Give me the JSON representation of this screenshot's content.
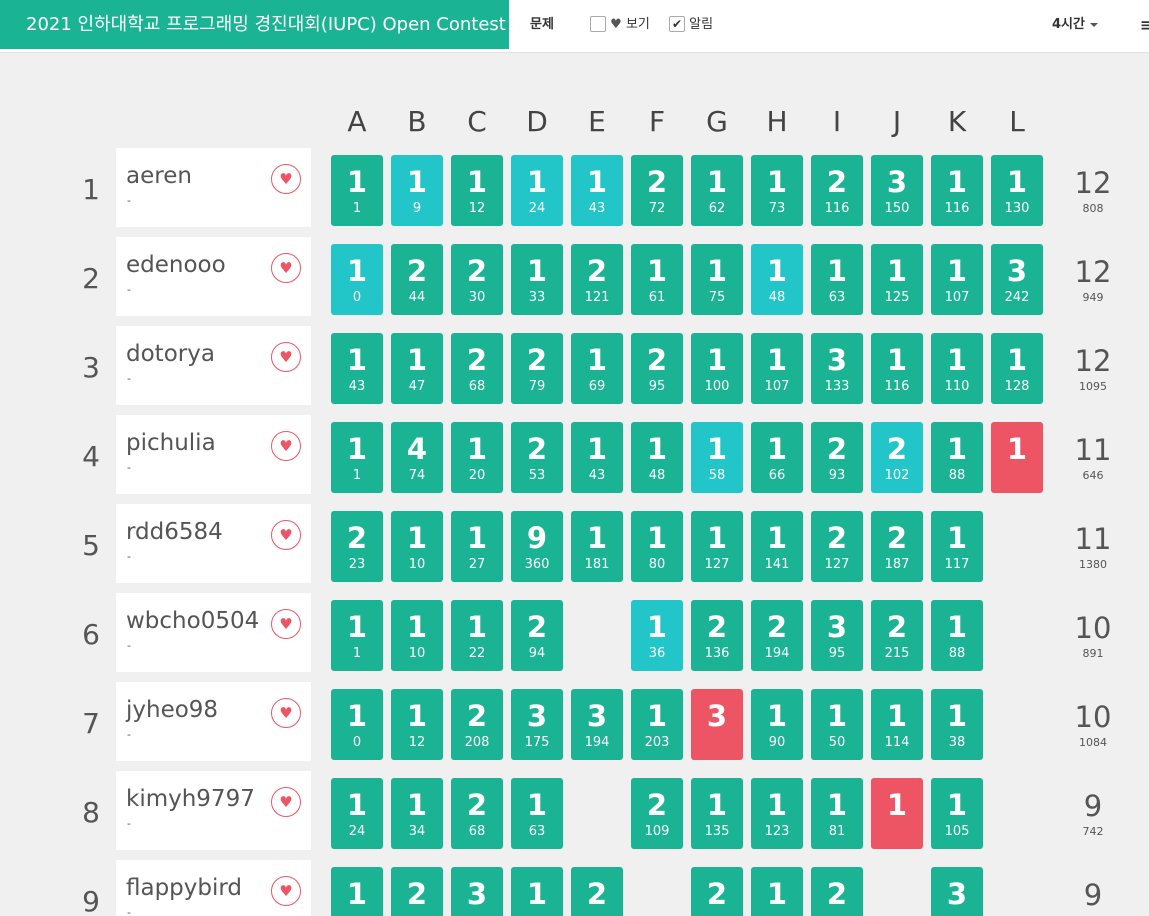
{
  "contest_title": "2021 인하대학교 프로그래밍 경진대회(IUPC) Open Contest",
  "toolbar": {
    "problem_label": "문제",
    "view_label": "보기",
    "view_checked": false,
    "alarm_label": "알림",
    "alarm_checked": true,
    "time_label": "4시간",
    "menu_glyph": "≡"
  },
  "colors": {
    "solved": "#1ab394",
    "first_solve": "#23c6c8",
    "failed": "#ed5565"
  },
  "problems": [
    "A",
    "B",
    "C",
    "D",
    "E",
    "F",
    "G",
    "H",
    "I",
    "J",
    "K",
    "L"
  ],
  "rows": [
    {
      "rank": "1",
      "name": "aeren",
      "sub": "-",
      "total": "12",
      "penalty": "808",
      "cells": [
        [
          "s",
          "1",
          "1"
        ],
        [
          "f",
          "1",
          "9"
        ],
        [
          "s",
          "1",
          "12"
        ],
        [
          "f",
          "1",
          "24"
        ],
        [
          "f",
          "1",
          "43"
        ],
        [
          "s",
          "2",
          "72"
        ],
        [
          "s",
          "1",
          "62"
        ],
        [
          "s",
          "1",
          "73"
        ],
        [
          "s",
          "2",
          "116"
        ],
        [
          "s",
          "3",
          "150"
        ],
        [
          "s",
          "1",
          "116"
        ],
        [
          "s",
          "1",
          "130"
        ]
      ]
    },
    {
      "rank": "2",
      "name": "edenooo",
      "sub": "-",
      "total": "12",
      "penalty": "949",
      "cells": [
        [
          "f",
          "1",
          "0"
        ],
        [
          "s",
          "2",
          "44"
        ],
        [
          "s",
          "2",
          "30"
        ],
        [
          "s",
          "1",
          "33"
        ],
        [
          "s",
          "2",
          "121"
        ],
        [
          "s",
          "1",
          "61"
        ],
        [
          "s",
          "1",
          "75"
        ],
        [
          "f",
          "1",
          "48"
        ],
        [
          "s",
          "1",
          "63"
        ],
        [
          "s",
          "1",
          "125"
        ],
        [
          "s",
          "1",
          "107"
        ],
        [
          "s",
          "3",
          "242"
        ]
      ]
    },
    {
      "rank": "3",
      "name": "dotorya",
      "sub": "-",
      "total": "12",
      "penalty": "1095",
      "cells": [
        [
          "s",
          "1",
          "43"
        ],
        [
          "s",
          "1",
          "47"
        ],
        [
          "s",
          "2",
          "68"
        ],
        [
          "s",
          "2",
          "79"
        ],
        [
          "s",
          "1",
          "69"
        ],
        [
          "s",
          "2",
          "95"
        ],
        [
          "s",
          "1",
          "100"
        ],
        [
          "s",
          "1",
          "107"
        ],
        [
          "s",
          "3",
          "133"
        ],
        [
          "s",
          "1",
          "116"
        ],
        [
          "s",
          "1",
          "110"
        ],
        [
          "s",
          "1",
          "128"
        ]
      ]
    },
    {
      "rank": "4",
      "name": "pichulia",
      "sub": "-",
      "total": "11",
      "penalty": "646",
      "cells": [
        [
          "s",
          "1",
          "1"
        ],
        [
          "s",
          "4",
          "74"
        ],
        [
          "s",
          "1",
          "20"
        ],
        [
          "s",
          "2",
          "53"
        ],
        [
          "s",
          "1",
          "43"
        ],
        [
          "s",
          "1",
          "48"
        ],
        [
          "f",
          "1",
          "58"
        ],
        [
          "s",
          "1",
          "66"
        ],
        [
          "s",
          "2",
          "93"
        ],
        [
          "f",
          "2",
          "102"
        ],
        [
          "s",
          "1",
          "88"
        ],
        [
          "x",
          "1",
          ""
        ]
      ]
    },
    {
      "rank": "5",
      "name": "rdd6584",
      "sub": "-",
      "total": "11",
      "penalty": "1380",
      "cells": [
        [
          "s",
          "2",
          "23"
        ],
        [
          "s",
          "1",
          "10"
        ],
        [
          "s",
          "1",
          "27"
        ],
        [
          "s",
          "9",
          "360"
        ],
        [
          "s",
          "1",
          "181"
        ],
        [
          "s",
          "1",
          "80"
        ],
        [
          "s",
          "1",
          "127"
        ],
        [
          "s",
          "1",
          "141"
        ],
        [
          "s",
          "2",
          "127"
        ],
        [
          "s",
          "2",
          "187"
        ],
        [
          "s",
          "1",
          "117"
        ],
        null
      ]
    },
    {
      "rank": "6",
      "name": "wbcho0504",
      "sub": "-",
      "total": "10",
      "penalty": "891",
      "cells": [
        [
          "s",
          "1",
          "1"
        ],
        [
          "s",
          "1",
          "10"
        ],
        [
          "s",
          "1",
          "22"
        ],
        [
          "s",
          "2",
          "94"
        ],
        null,
        [
          "f",
          "1",
          "36"
        ],
        [
          "s",
          "2",
          "136"
        ],
        [
          "s",
          "2",
          "194"
        ],
        [
          "s",
          "3",
          "95"
        ],
        [
          "s",
          "2",
          "215"
        ],
        [
          "s",
          "1",
          "88"
        ],
        null
      ]
    },
    {
      "rank": "7",
      "name": "jyheo98",
      "sub": "-",
      "total": "10",
      "penalty": "1084",
      "cells": [
        [
          "s",
          "1",
          "0"
        ],
        [
          "s",
          "1",
          "12"
        ],
        [
          "s",
          "2",
          "208"
        ],
        [
          "s",
          "3",
          "175"
        ],
        [
          "s",
          "3",
          "194"
        ],
        [
          "s",
          "1",
          "203"
        ],
        [
          "x",
          "3",
          ""
        ],
        [
          "s",
          "1",
          "90"
        ],
        [
          "s",
          "1",
          "50"
        ],
        [
          "s",
          "1",
          "114"
        ],
        [
          "s",
          "1",
          "38"
        ],
        null
      ]
    },
    {
      "rank": "8",
      "name": "kimyh9797",
      "sub": "-",
      "total": "9",
      "penalty": "742",
      "cells": [
        [
          "s",
          "1",
          "24"
        ],
        [
          "s",
          "1",
          "34"
        ],
        [
          "s",
          "2",
          "68"
        ],
        [
          "s",
          "1",
          "63"
        ],
        null,
        [
          "s",
          "2",
          "109"
        ],
        [
          "s",
          "1",
          "135"
        ],
        [
          "s",
          "1",
          "123"
        ],
        [
          "s",
          "1",
          "81"
        ],
        [
          "x",
          "1",
          ""
        ],
        [
          "s",
          "1",
          "105"
        ],
        null
      ]
    },
    {
      "rank": "9",
      "name": "flappybird",
      "sub": "-",
      "total": "9",
      "penalty": "",
      "cells": [
        [
          "s",
          "1",
          ""
        ],
        [
          "s",
          "2",
          ""
        ],
        [
          "s",
          "3",
          ""
        ],
        [
          "s",
          "1",
          ""
        ],
        [
          "s",
          "2",
          ""
        ],
        null,
        [
          "s",
          "2",
          ""
        ],
        [
          "s",
          "1",
          ""
        ],
        [
          "s",
          "2",
          ""
        ],
        null,
        [
          "s",
          "3",
          ""
        ],
        null
      ]
    }
  ]
}
